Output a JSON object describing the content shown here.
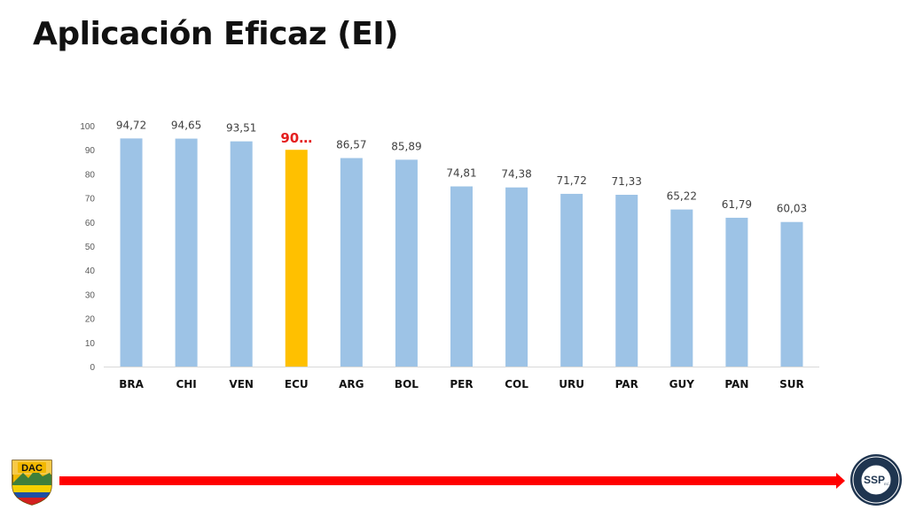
{
  "slide": {
    "title": "Aplicación Eficaz (EI)"
  },
  "chart_data": {
    "type": "bar",
    "categories": [
      "BRA",
      "CHI",
      "VEN",
      "ECU",
      "ARG",
      "BOL",
      "PER",
      "COL",
      "URU",
      "PAR",
      "GUY",
      "PAN",
      "SUR"
    ],
    "values": [
      94.72,
      94.65,
      93.51,
      90,
      86.57,
      85.89,
      74.81,
      74.38,
      71.72,
      71.33,
      65.22,
      61.79,
      60.03
    ],
    "labels": [
      "94,72",
      "94,65",
      "93,51",
      "90…",
      "86,57",
      "85,89",
      "74,81",
      "74,38",
      "71,72",
      "71,33",
      "65,22",
      "61,79",
      "60,03"
    ],
    "highlight_index": 3,
    "ylim": [
      0,
      100
    ],
    "yticks": [
      "0",
      "10",
      "20",
      "30",
      "40",
      "50",
      "60",
      "70",
      "80",
      "90",
      "100"
    ],
    "grid": false,
    "colors": {
      "bar": "#9dc3e6",
      "highlight": "#ffc000",
      "highlight_label": "#e41f1f",
      "axis": "#d9d9d9"
    }
  },
  "footer": {
    "left_logo_text": "DAC",
    "right_logo_text": "SSP",
    "right_logo_suffix": "EC",
    "arrow_color": "#ff0000"
  }
}
